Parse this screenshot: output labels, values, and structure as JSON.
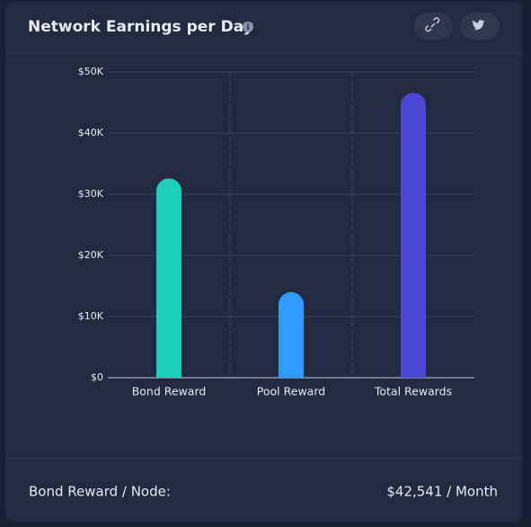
{
  "chart_data": {
    "type": "bar",
    "title": "Network Earnings per Day",
    "categories": [
      "Bond Reward",
      "Pool Reward",
      "Total Rewards"
    ],
    "values": [
      32600,
      14000,
      46600
    ],
    "colors": [
      "#1ccfb9",
      "#2d9bff",
      "#4b46d6"
    ],
    "ylim": [
      0,
      50000
    ],
    "yticks": [
      {
        "value": 0,
        "label": "$0"
      },
      {
        "value": 10000,
        "label": "$10K"
      },
      {
        "value": 20000,
        "label": "$20K"
      },
      {
        "value": 30000,
        "label": "$30K"
      },
      {
        "value": 40000,
        "label": "$40K"
      },
      {
        "value": 50000,
        "label": "$50K"
      }
    ],
    "grid": true
  },
  "footer": {
    "label": "Bond Reward / Node:",
    "value": "$42,541 / Month"
  }
}
